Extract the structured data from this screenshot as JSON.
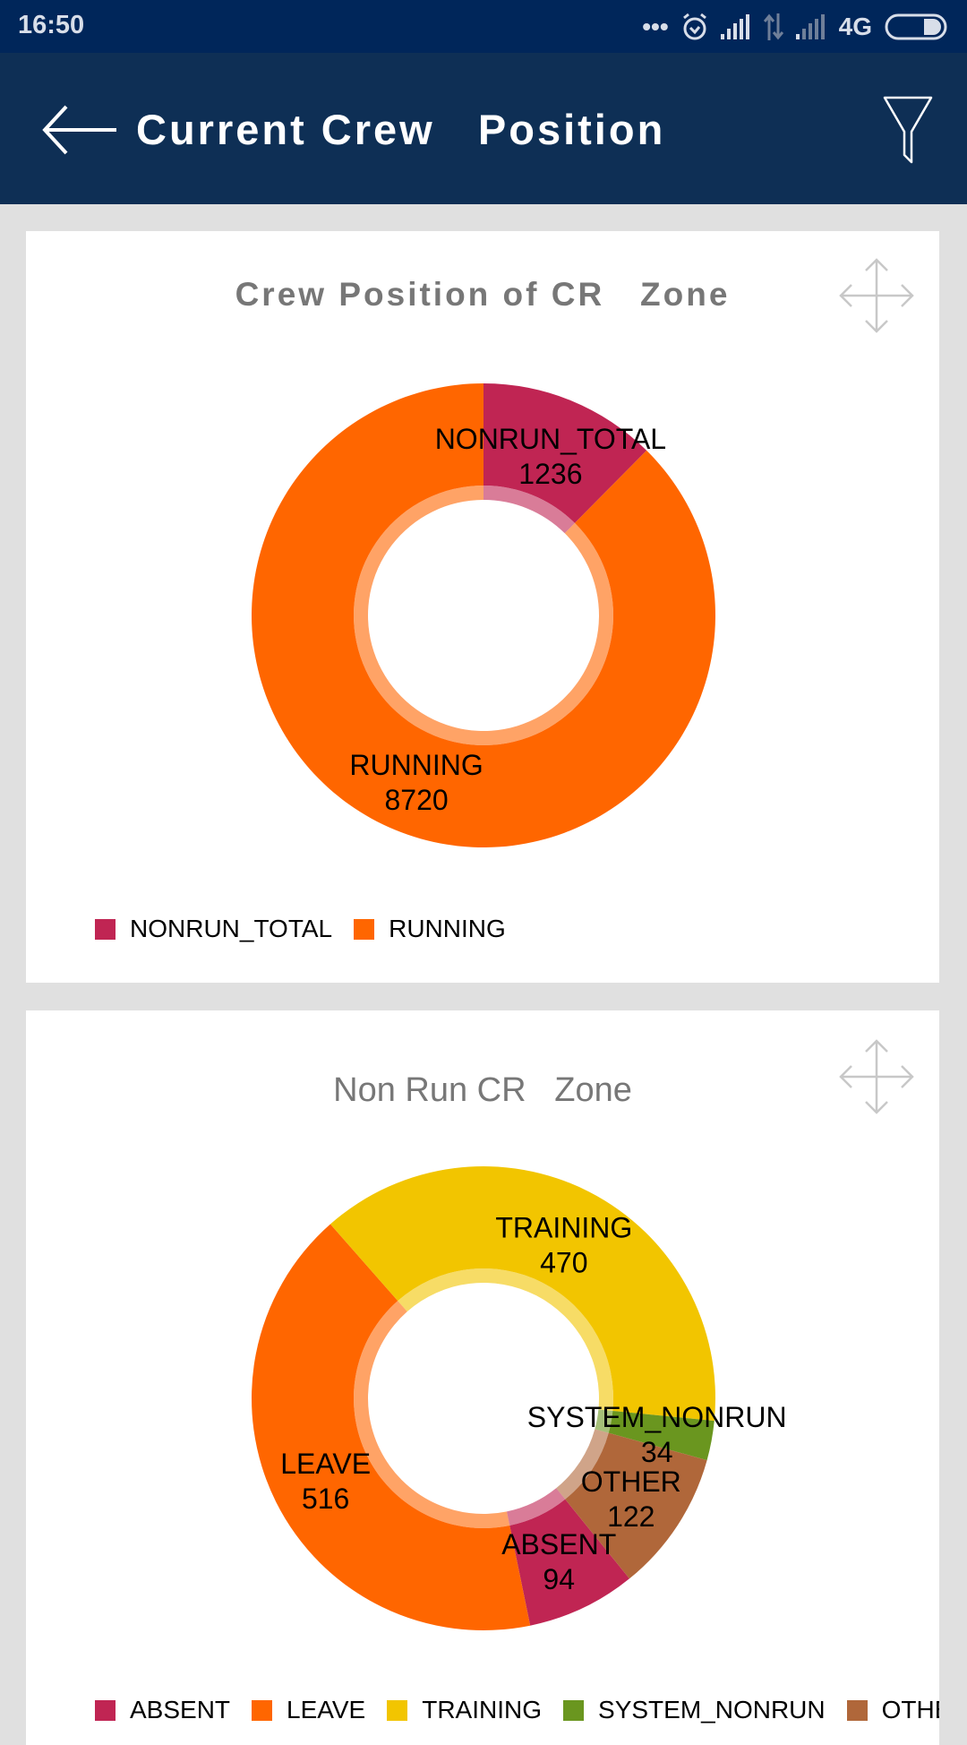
{
  "status_bar": {
    "time": "16:50",
    "network": "4G"
  },
  "app_bar": {
    "title": "Current Crew   Position"
  },
  "cards": [
    {
      "title": "Crew Position of CR   Zone"
    },
    {
      "title": "Non Run CR   Zone"
    }
  ],
  "chart_data": [
    {
      "type": "pie",
      "title": "Crew Position of CR   Zone",
      "categories": [
        "NONRUN_TOTAL",
        "RUNNING"
      ],
      "values": [
        1236,
        8720
      ],
      "value_labels": [
        "1236",
        "8720"
      ],
      "colors": [
        "#c02553",
        "#ff6600"
      ],
      "start_angle_deg": 0,
      "legend": "bottom-left"
    },
    {
      "type": "pie",
      "title": "Non Run CR   Zone",
      "categories": [
        "ABSENT",
        "LEAVE",
        "TRAINING",
        "SYSTEM_NONRUN",
        "OTHER"
      ],
      "values": [
        94,
        516,
        470,
        34,
        122
      ],
      "value_labels": [
        "94",
        "516",
        "470",
        "34",
        "122"
      ],
      "colors": [
        "#c02553",
        "#ff6600",
        "#f2c500",
        "#6a961f",
        "#b0673a"
      ],
      "start_angle_deg": 141,
      "legend": "bottom-left"
    }
  ]
}
